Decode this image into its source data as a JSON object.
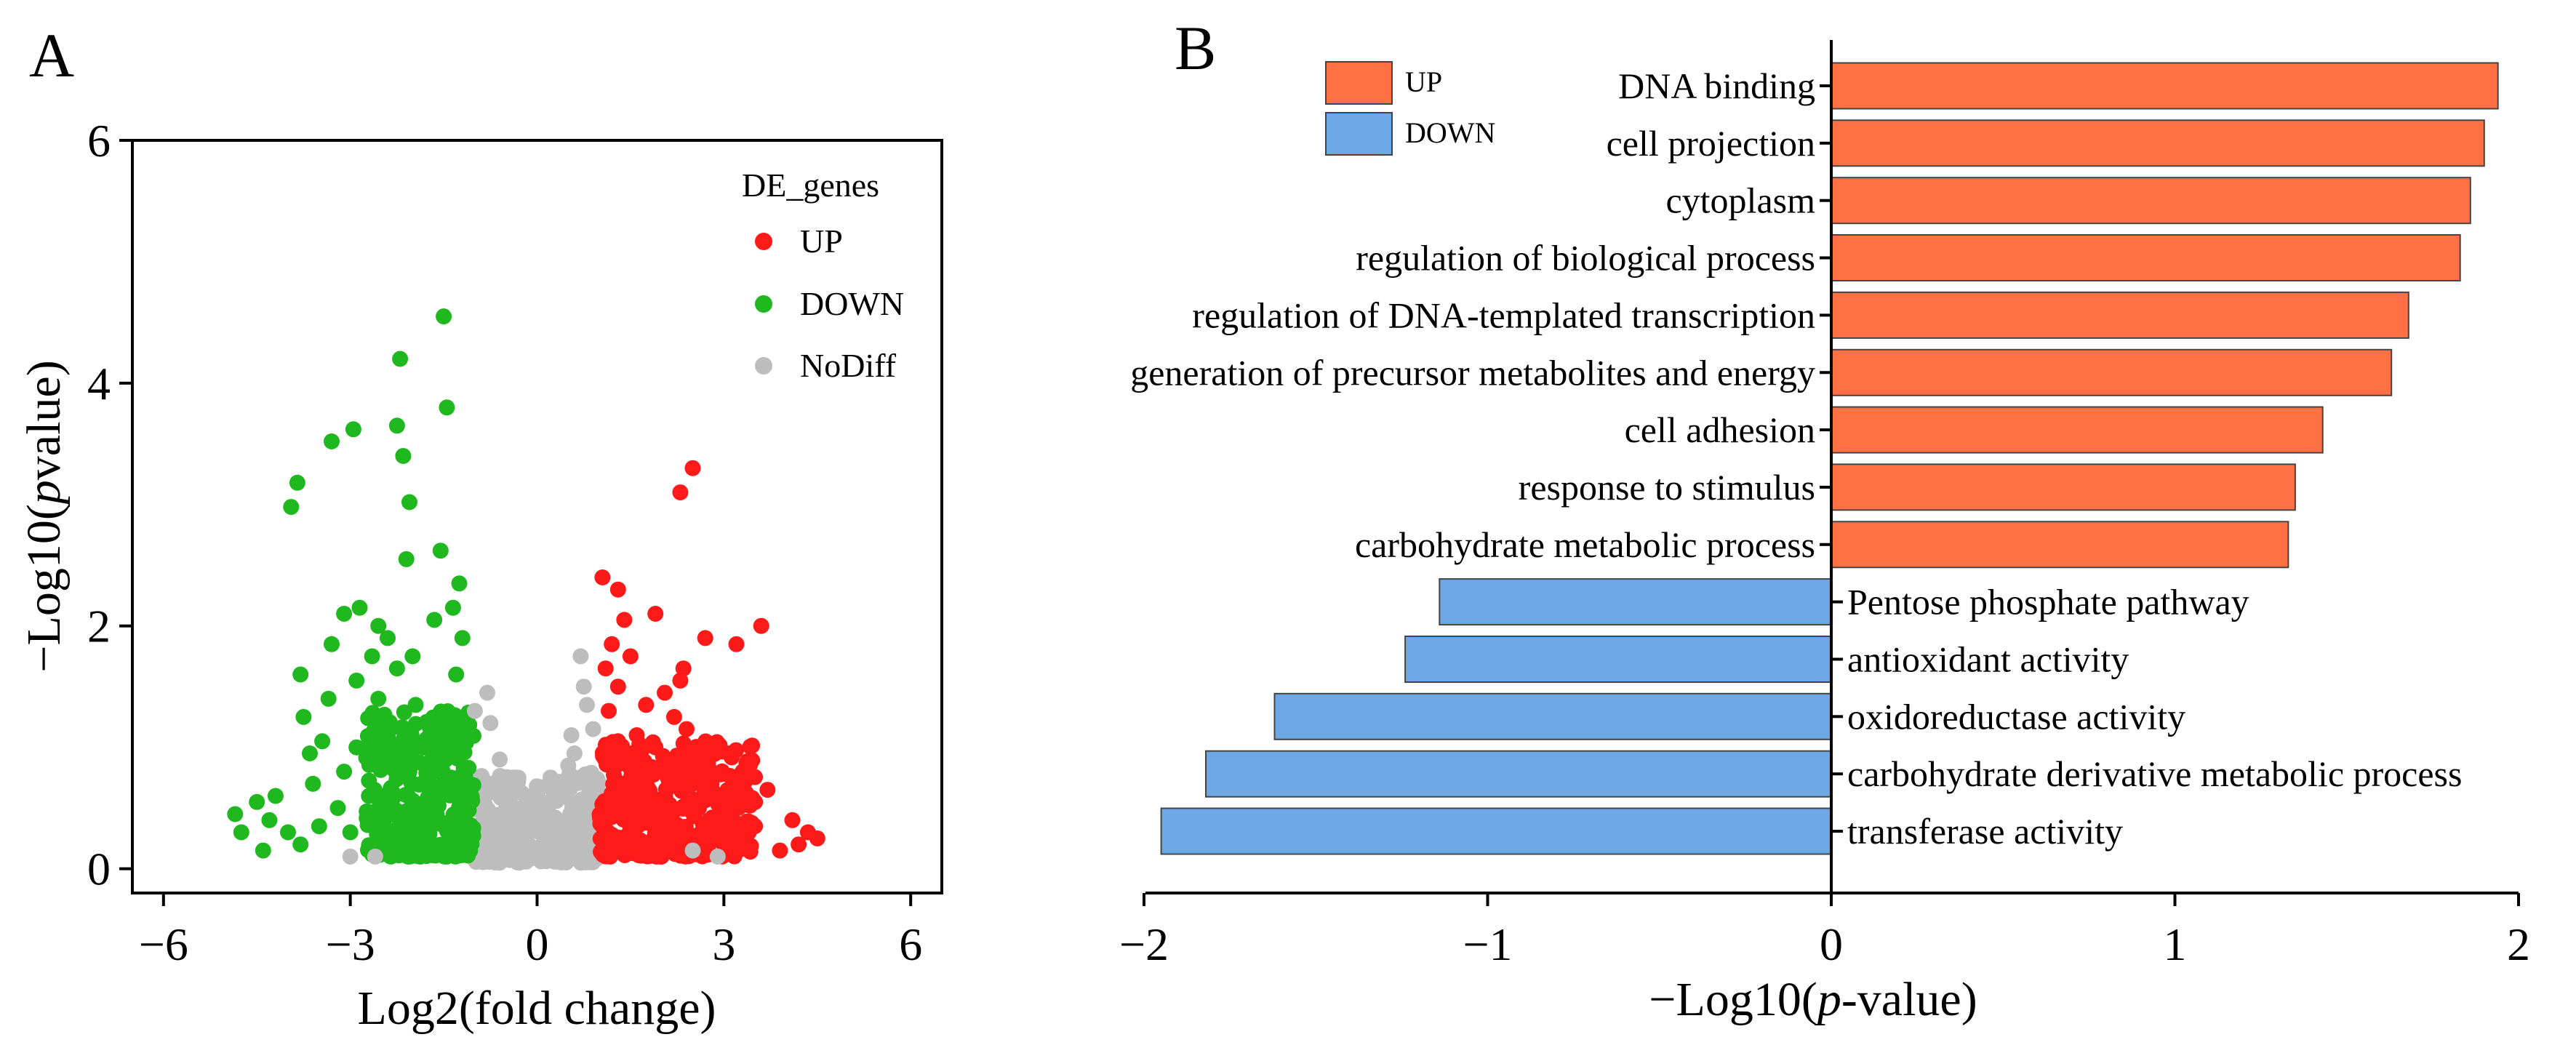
{
  "panels": {
    "a": {
      "letter": "A"
    },
    "b": {
      "letter": "B"
    }
  },
  "colors": {
    "up": "#ff1a1a",
    "down": "#1fb81f",
    "nodiff": "#bdbdbd",
    "up_bar": "#ff7145",
    "down_bar": "#6ea7e6"
  },
  "chart_data": [
    {
      "type": "scatter",
      "title": "",
      "xlabel": "Log2(fold change)",
      "ylabel_prefix": "−Log10(",
      "ylabel_italic": "p",
      "ylabel_suffix": "value)",
      "xlim": [
        -6.5,
        6.5
      ],
      "ylim": [
        -0.2,
        6.0
      ],
      "xticks": [
        -6,
        -3,
        0,
        3,
        6
      ],
      "xtick_labels": [
        "−6",
        "−3",
        "0",
        "3",
        "6"
      ],
      "yticks": [
        0,
        2,
        4,
        6
      ],
      "ytick_labels": [
        "0",
        "2",
        "4",
        "6"
      ],
      "legend": {
        "title": "DE_genes",
        "entries": [
          {
            "key": "UP",
            "label": "UP"
          },
          {
            "key": "DOWN",
            "label": "DOWN"
          },
          {
            "key": "NoDiff",
            "label": "NoDiff"
          }
        ]
      },
      "series": [
        {
          "name": "UP",
          "points": [
            [
              2.5,
              3.3
            ],
            [
              2.3,
              3.1
            ],
            [
              1.05,
              2.4
            ],
            [
              3.6,
              2.0
            ],
            [
              1.3,
              2.3
            ],
            [
              1.4,
              2.05
            ],
            [
              1.9,
              2.1
            ],
            [
              2.7,
              1.9
            ],
            [
              3.2,
              1.85
            ],
            [
              1.2,
              1.85
            ],
            [
              1.5,
              1.75
            ],
            [
              2.35,
              1.65
            ],
            [
              1.1,
              1.65
            ],
            [
              1.3,
              1.5
            ],
            [
              2.3,
              1.55
            ],
            [
              2.05,
              1.45
            ],
            [
              1.75,
              1.35
            ],
            [
              2.2,
              1.25
            ],
            [
              1.15,
              1.3
            ],
            [
              2.4,
              1.15
            ],
            [
              1.6,
              1.1
            ],
            [
              2.9,
              1.0
            ],
            [
              3.1,
              0.95
            ],
            [
              1.3,
              1.05
            ],
            [
              1.9,
              1.0
            ],
            [
              2.5,
              0.9
            ],
            [
              3.3,
              0.8
            ],
            [
              3.5,
              0.55
            ],
            [
              1.7,
              0.85
            ],
            [
              2.1,
              0.75
            ],
            [
              2.8,
              0.7
            ],
            [
              3.7,
              0.65
            ],
            [
              4.1,
              0.4
            ],
            [
              4.35,
              0.3
            ],
            [
              4.5,
              0.25
            ],
            [
              4.2,
              0.2
            ],
            [
              3.9,
              0.15
            ],
            [
              3.4,
              0.3
            ],
            [
              1.4,
              0.7
            ],
            [
              1.2,
              0.55
            ],
            [
              2.6,
              0.5
            ],
            [
              3.0,
              0.4
            ],
            [
              1.5,
              0.4
            ],
            [
              2.0,
              0.35
            ],
            [
              2.4,
              0.3
            ],
            [
              1.05,
              0.35
            ],
            [
              1.8,
              0.55
            ],
            [
              3.2,
              0.25
            ]
          ],
          "dense_region": {
            "x": [
              1.0,
              3.5
            ],
            "y": [
              0.1,
              1.05
            ],
            "count": 360
          }
        },
        {
          "name": "DOWN",
          "points": [
            [
              -1.5,
              4.55
            ],
            [
              -2.2,
              4.2
            ],
            [
              -1.45,
              3.8
            ],
            [
              -2.25,
              3.65
            ],
            [
              -2.95,
              3.62
            ],
            [
              -3.3,
              3.52
            ],
            [
              -2.15,
              3.4
            ],
            [
              -3.85,
              3.18
            ],
            [
              -3.95,
              2.98
            ],
            [
              -2.05,
              3.02
            ],
            [
              -1.55,
              2.62
            ],
            [
              -2.1,
              2.55
            ],
            [
              -1.25,
              2.35
            ],
            [
              -2.85,
              2.15
            ],
            [
              -1.35,
              2.15
            ],
            [
              -3.1,
              2.1
            ],
            [
              -1.65,
              2.05
            ],
            [
              -2.55,
              2.0
            ],
            [
              -2.4,
              1.9
            ],
            [
              -3.3,
              1.85
            ],
            [
              -1.2,
              1.9
            ],
            [
              -2.65,
              1.75
            ],
            [
              -2.0,
              1.75
            ],
            [
              -2.25,
              1.65
            ],
            [
              -3.8,
              1.6
            ],
            [
              -2.9,
              1.55
            ],
            [
              -1.3,
              1.6
            ],
            [
              -3.35,
              1.4
            ],
            [
              -2.55,
              1.4
            ],
            [
              -1.95,
              1.35
            ],
            [
              -3.75,
              1.25
            ],
            [
              -2.4,
              1.2
            ],
            [
              -3.45,
              1.05
            ],
            [
              -3.65,
              0.95
            ],
            [
              -2.9,
              1.0
            ],
            [
              -3.1,
              0.8
            ],
            [
              -3.6,
              0.7
            ],
            [
              -4.2,
              0.6
            ],
            [
              -4.5,
              0.55
            ],
            [
              -4.85,
              0.45
            ],
            [
              -4.75,
              0.3
            ],
            [
              -4.3,
              0.4
            ],
            [
              -4.0,
              0.3
            ],
            [
              -3.8,
              0.2
            ],
            [
              -4.4,
              0.15
            ],
            [
              -3.5,
              0.35
            ],
            [
              -3.2,
              0.5
            ],
            [
              -2.7,
              0.6
            ],
            [
              -3.0,
              0.3
            ],
            [
              -2.5,
              0.45
            ]
          ],
          "dense_region": {
            "x": [
              -2.75,
              -1.0
            ],
            "y": [
              0.1,
              1.3
            ],
            "count": 320
          }
        },
        {
          "name": "NoDiff",
          "points": [
            [
              -0.8,
              1.45
            ],
            [
              -1.0,
              1.3
            ],
            [
              -0.75,
              1.2
            ],
            [
              0.7,
              1.75
            ],
            [
              0.75,
              1.5
            ],
            [
              0.8,
              1.35
            ],
            [
              0.55,
              1.1
            ],
            [
              0.6,
              0.95
            ],
            [
              0.9,
              1.15
            ],
            [
              -0.6,
              0.9
            ],
            [
              -0.3,
              0.75
            ],
            [
              0.5,
              0.85
            ],
            [
              0.2,
              0.55
            ],
            [
              0.35,
              0.65
            ],
            [
              -0.15,
              0.4
            ],
            [
              2.5,
              0.15
            ],
            [
              2.9,
              0.1
            ],
            [
              -2.6,
              0.1
            ],
            [
              -3.0,
              0.1
            ]
          ],
          "dense_region": {
            "x": [
              -1.0,
              1.0
            ],
            "y": [
              0.05,
              0.8
            ],
            "count": 320
          }
        }
      ]
    },
    {
      "type": "bar",
      "orientation": "horizontal",
      "title": "",
      "xlabel_prefix": "−Log10(",
      "xlabel_italic": "p",
      "xlabel_suffix": "-value)",
      "xlim": [
        -2,
        2
      ],
      "xticks": [
        -2,
        -1,
        0,
        1,
        2
      ],
      "xtick_labels": [
        "−2",
        "−1",
        "0",
        "1",
        "2"
      ],
      "legend": [
        {
          "key": "UP",
          "label": "UP"
        },
        {
          "key": "DOWN",
          "label": "DOWN"
        }
      ],
      "categories": [
        "DNA binding",
        "cell projection",
        "cytoplasm",
        "regulation of biological process",
        "regulation of DNA-templated transcription",
        "generation of precursor metabolites and energy",
        "cell adhesion",
        "response to stimulus",
        "carbohydrate metabolic process",
        "Pentose phosphate pathway",
        "antioxidant activity",
        "oxidoreductase activity",
        "carbohydrate derivative metabolic process",
        "transferase activity"
      ],
      "values": [
        1.94,
        1.9,
        1.86,
        1.83,
        1.68,
        1.63,
        1.43,
        1.35,
        1.33,
        -1.14,
        -1.24,
        -1.62,
        -1.82,
        -1.95
      ],
      "groups": [
        "UP",
        "UP",
        "UP",
        "UP",
        "UP",
        "UP",
        "UP",
        "UP",
        "UP",
        "DOWN",
        "DOWN",
        "DOWN",
        "DOWN",
        "DOWN"
      ]
    }
  ]
}
